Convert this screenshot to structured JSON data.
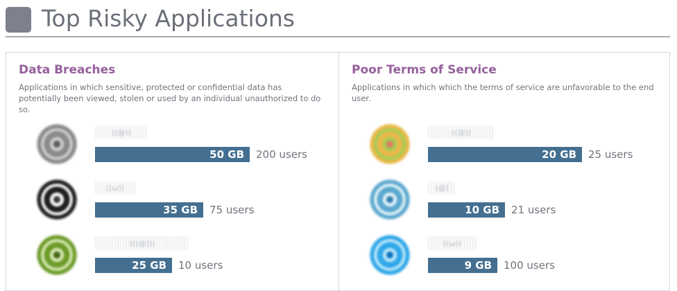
{
  "header": {
    "title": "Top Risky Applications"
  },
  "panels": [
    {
      "title": "Data Breaches",
      "description": "Applications in which sensitive, protected or confidential data has potentially been viewed, stolen or used by an individual unauthorized to do so.",
      "items": [
        {
          "data_label": "50 GB",
          "data_gb": 50,
          "users_label": "200 users",
          "name_placeholder": "((@))",
          "icon": "gray-swirl-logo",
          "icon_colors": [
            "#8a8a8a",
            "#cfcfcf",
            "#5c5c5c"
          ]
        },
        {
          "data_label": "35 GB",
          "data_gb": 35,
          "users_label": "75 users",
          "name_placeholder": "((ω))",
          "icon": "black-ring-logo",
          "icon_colors": [
            "#1e1e1e",
            "#ffffff",
            "#3a3a3a"
          ]
        },
        {
          "data_label": "25 GB",
          "data_gb": 25,
          "users_label": "10 users",
          "name_placeholder": "(((@)))",
          "icon": "green-target-logo",
          "icon_colors": [
            "#6e9a2a",
            "#d9ecb6",
            "#3f6612"
          ]
        }
      ]
    },
    {
      "title": "Poor Terms of Service",
      "description": "Applications in which which the terms of service are unfavorable to the end user.",
      "items": [
        {
          "data_label": "20 GB",
          "data_gb": 20,
          "users_label": "25 users",
          "name_placeholder": "((@))",
          "icon": "multicolor-swirl-logo",
          "icon_colors": [
            "#e9b84a",
            "#9fcf55",
            "#e07a5f"
          ]
        },
        {
          "data_label": "10 GB",
          "data_gb": 10,
          "users_label": "21 users",
          "name_placeholder": "(@)",
          "icon": "blue-rings-logo",
          "icon_colors": [
            "#5aa8cf",
            "#e6f4fa",
            "#2f7fae"
          ]
        },
        {
          "data_label": "9 GB",
          "data_gb": 9,
          "users_label": "100 users",
          "name_placeholder": "((ω))",
          "icon": "cyan-swirl-logo",
          "icon_colors": [
            "#2fa7e8",
            "#bfe9fb",
            "#0f73c2"
          ]
        }
      ]
    }
  ]
}
